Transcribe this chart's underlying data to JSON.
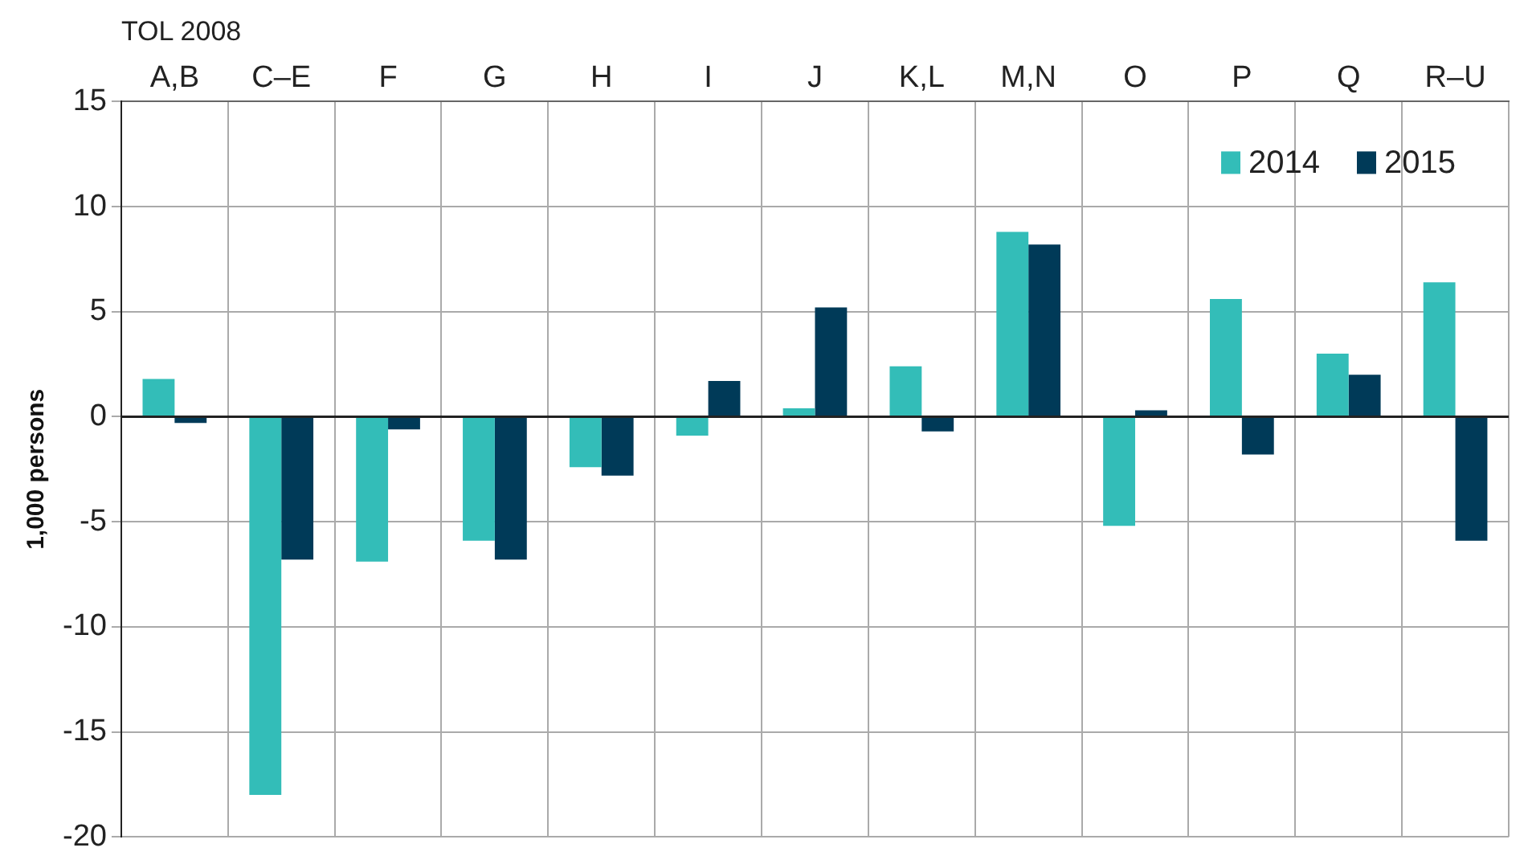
{
  "chart_data": {
    "type": "bar",
    "xlabel": "TOL 2008",
    "ylabel": "1,000 persons",
    "categories": [
      "A,B",
      "C–E",
      "F",
      "G",
      "H",
      "I",
      "J",
      "K,L",
      "M,N",
      "O",
      "P",
      "Q",
      "R–U"
    ],
    "series": [
      {
        "name": "2014",
        "color": "#33bdb8",
        "values": [
          1.8,
          -18,
          -6.9,
          -5.9,
          -2.4,
          -0.9,
          0.4,
          2.4,
          8.8,
          -5.2,
          5.6,
          3.0,
          6.4
        ]
      },
      {
        "name": "2015",
        "color": "#003a58",
        "values": [
          -0.3,
          -6.8,
          -0.6,
          -6.8,
          -2.8,
          1.7,
          5.2,
          -0.7,
          8.2,
          0.3,
          -1.8,
          2.0,
          -5.9
        ]
      }
    ],
    "ylim": [
      -20,
      15
    ],
    "yticks": [
      -20,
      -15,
      -10,
      -5,
      0,
      5,
      10,
      15
    ],
    "grid": true,
    "legend": "top right"
  }
}
